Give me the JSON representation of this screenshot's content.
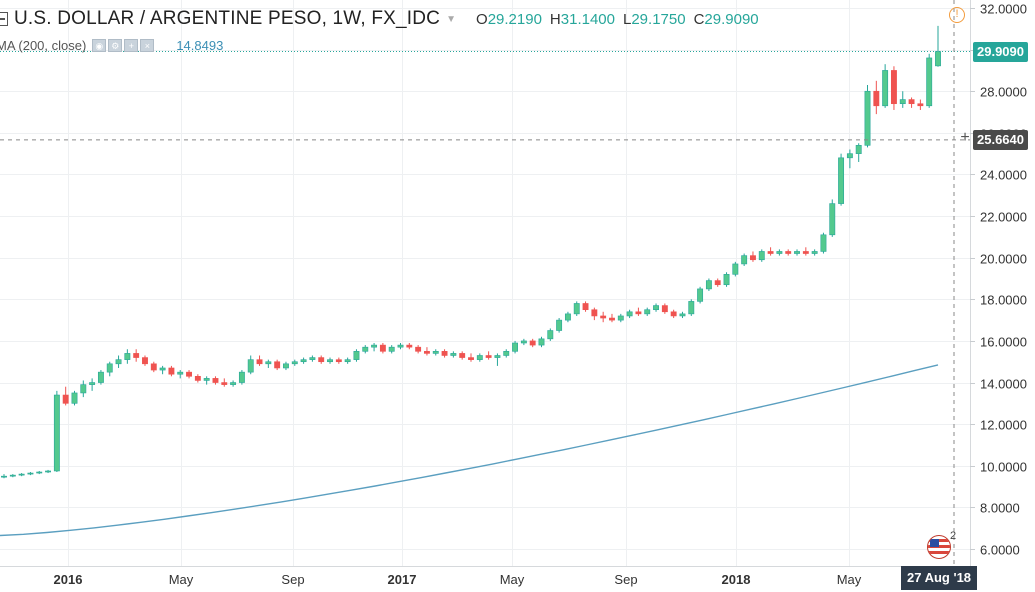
{
  "header": {
    "title": "U.S. DOLLAR / ARGENTINE PESO, 1W, FX_IDC",
    "ohlc": [
      {
        "label": "O",
        "value": "29.2190"
      },
      {
        "label": "H",
        "value": "31.1400"
      },
      {
        "label": "L",
        "value": "29.1750"
      },
      {
        "label": "C",
        "value": "29.9090"
      }
    ]
  },
  "study": {
    "name": "MA (200, close)",
    "value": "14.8493",
    "color": "#5b9fc0"
  },
  "price_labels": {
    "last": "29.9090",
    "crosshair": "25.6640",
    "last_color": "#26a69a",
    "crosshair_color": "#4a4a4a"
  },
  "date_label": "27 Aug '18",
  "flag_count": "2",
  "colors": {
    "up": "#26a69a",
    "up_fill": "#53c98e",
    "down": "#ef5350",
    "ma": "#5b9fc0",
    "grid": "#eef0f2",
    "axis_text": "#333333"
  },
  "chart_data": {
    "type": "candlestick",
    "y_ticks": [
      "32.0000",
      "30.0000",
      "28.0000",
      "26.0000",
      "24.0000",
      "22.0000",
      "20.0000",
      "18.0000",
      "16.0000",
      "14.0000",
      "12.0000",
      "10.0000",
      "8.0000",
      "6.0000"
    ],
    "x_ticks": [
      "2016",
      "May",
      "Sep",
      "2017",
      "May",
      "Sep",
      "2018",
      "May"
    ],
    "ylim": [
      5.0,
      32.5
    ],
    "last_price": 29.909,
    "crosshair_price": 25.664,
    "candles": [
      [
        9.5,
        9.6,
        9.4,
        9.5
      ],
      [
        9.5,
        9.6,
        9.45,
        9.55
      ],
      [
        9.55,
        9.65,
        9.5,
        9.6
      ],
      [
        9.6,
        9.7,
        9.55,
        9.65
      ],
      [
        9.65,
        9.75,
        9.6,
        9.7
      ],
      [
        9.7,
        9.8,
        9.65,
        9.75
      ],
      [
        9.75,
        13.6,
        9.7,
        13.4
      ],
      [
        13.4,
        13.8,
        12.9,
        13.0
      ],
      [
        13.0,
        13.6,
        12.9,
        13.5
      ],
      [
        13.5,
        14.1,
        13.3,
        13.9
      ],
      [
        13.9,
        14.2,
        13.6,
        14.0
      ],
      [
        14.0,
        14.6,
        13.9,
        14.5
      ],
      [
        14.5,
        15.0,
        14.3,
        14.9
      ],
      [
        14.9,
        15.3,
        14.7,
        15.1
      ],
      [
        15.1,
        15.6,
        14.9,
        15.4
      ],
      [
        15.4,
        15.6,
        15.0,
        15.2
      ],
      [
        15.2,
        15.3,
        14.8,
        14.9
      ],
      [
        14.9,
        15.0,
        14.5,
        14.6
      ],
      [
        14.6,
        14.8,
        14.4,
        14.7
      ],
      [
        14.7,
        14.8,
        14.3,
        14.4
      ],
      [
        14.4,
        14.6,
        14.2,
        14.5
      ],
      [
        14.5,
        14.6,
        14.2,
        14.3
      ],
      [
        14.3,
        14.4,
        14.0,
        14.1
      ],
      [
        14.1,
        14.3,
        13.9,
        14.2
      ],
      [
        14.2,
        14.3,
        13.9,
        14.0
      ],
      [
        14.0,
        14.2,
        13.8,
        13.9
      ],
      [
        13.9,
        14.1,
        13.8,
        14.0
      ],
      [
        14.0,
        14.6,
        13.9,
        14.5
      ],
      [
        14.5,
        15.3,
        14.4,
        15.1
      ],
      [
        15.1,
        15.3,
        14.8,
        14.9
      ],
      [
        14.9,
        15.1,
        14.7,
        15.0
      ],
      [
        15.0,
        15.1,
        14.6,
        14.7
      ],
      [
        14.7,
        15.0,
        14.6,
        14.9
      ],
      [
        14.9,
        15.1,
        14.8,
        15.0
      ],
      [
        15.0,
        15.2,
        14.9,
        15.1
      ],
      [
        15.1,
        15.3,
        15.0,
        15.2
      ],
      [
        15.2,
        15.3,
        14.9,
        15.0
      ],
      [
        15.0,
        15.2,
        14.9,
        15.1
      ],
      [
        15.1,
        15.2,
        14.9,
        15.0
      ],
      [
        15.0,
        15.2,
        14.9,
        15.1
      ],
      [
        15.1,
        15.6,
        15.0,
        15.5
      ],
      [
        15.5,
        15.8,
        15.4,
        15.7
      ],
      [
        15.7,
        15.9,
        15.5,
        15.8
      ],
      [
        15.8,
        15.9,
        15.4,
        15.5
      ],
      [
        15.5,
        15.8,
        15.4,
        15.7
      ],
      [
        15.7,
        15.9,
        15.6,
        15.8
      ],
      [
        15.8,
        15.9,
        15.6,
        15.7
      ],
      [
        15.7,
        15.8,
        15.4,
        15.5
      ],
      [
        15.5,
        15.7,
        15.3,
        15.4
      ],
      [
        15.4,
        15.6,
        15.3,
        15.5
      ],
      [
        15.5,
        15.6,
        15.2,
        15.3
      ],
      [
        15.3,
        15.5,
        15.2,
        15.4
      ],
      [
        15.4,
        15.5,
        15.1,
        15.2
      ],
      [
        15.2,
        15.4,
        15.0,
        15.1
      ],
      [
        15.1,
        15.4,
        15.0,
        15.3
      ],
      [
        15.3,
        15.5,
        15.1,
        15.2
      ],
      [
        15.2,
        15.4,
        14.8,
        15.3
      ],
      [
        15.3,
        15.6,
        15.2,
        15.5
      ],
      [
        15.5,
        16.0,
        15.4,
        15.9
      ],
      [
        15.9,
        16.1,
        15.8,
        16.0
      ],
      [
        16.0,
        16.1,
        15.7,
        15.8
      ],
      [
        15.8,
        16.2,
        15.7,
        16.1
      ],
      [
        16.1,
        16.6,
        16.0,
        16.5
      ],
      [
        16.5,
        17.1,
        16.4,
        17.0
      ],
      [
        17.0,
        17.4,
        16.9,
        17.3
      ],
      [
        17.3,
        17.9,
        17.2,
        17.8
      ],
      [
        17.8,
        17.9,
        17.4,
        17.5
      ],
      [
        17.5,
        17.6,
        17.0,
        17.2
      ],
      [
        17.2,
        17.4,
        16.9,
        17.1
      ],
      [
        17.1,
        17.3,
        16.9,
        17.0
      ],
      [
        17.0,
        17.3,
        16.9,
        17.2
      ],
      [
        17.2,
        17.5,
        17.1,
        17.4
      ],
      [
        17.4,
        17.6,
        17.2,
        17.3
      ],
      [
        17.3,
        17.6,
        17.2,
        17.5
      ],
      [
        17.5,
        17.8,
        17.4,
        17.7
      ],
      [
        17.7,
        17.8,
        17.3,
        17.4
      ],
      [
        17.4,
        17.5,
        17.1,
        17.2
      ],
      [
        17.2,
        17.4,
        17.1,
        17.3
      ],
      [
        17.3,
        18.0,
        17.2,
        17.9
      ],
      [
        17.9,
        18.6,
        17.8,
        18.5
      ],
      [
        18.5,
        19.0,
        18.4,
        18.9
      ],
      [
        18.9,
        19.0,
        18.6,
        18.7
      ],
      [
        18.7,
        19.3,
        18.6,
        19.2
      ],
      [
        19.2,
        19.8,
        19.1,
        19.7
      ],
      [
        19.7,
        20.2,
        19.6,
        20.1
      ],
      [
        20.1,
        20.3,
        19.8,
        19.9
      ],
      [
        19.9,
        20.4,
        19.8,
        20.3
      ],
      [
        20.3,
        20.5,
        20.1,
        20.2
      ],
      [
        20.2,
        20.4,
        20.1,
        20.3
      ],
      [
        20.3,
        20.4,
        20.1,
        20.2
      ],
      [
        20.2,
        20.4,
        20.1,
        20.3
      ],
      [
        20.3,
        20.5,
        20.1,
        20.2
      ],
      [
        20.2,
        20.4,
        20.1,
        20.3
      ],
      [
        20.3,
        21.2,
        20.2,
        21.1
      ],
      [
        21.1,
        22.8,
        21.0,
        22.6
      ],
      [
        22.6,
        25.0,
        22.5,
        24.8
      ],
      [
        24.8,
        25.2,
        24.3,
        25.0
      ],
      [
        25.0,
        25.5,
        24.6,
        25.4
      ],
      [
        25.4,
        28.3,
        25.3,
        28.0
      ],
      [
        28.0,
        28.5,
        26.9,
        27.3
      ],
      [
        27.3,
        29.3,
        27.2,
        29.0
      ],
      [
        29.0,
        29.2,
        27.1,
        27.4
      ],
      [
        27.4,
        28.0,
        27.2,
        27.6
      ],
      [
        27.6,
        27.7,
        27.2,
        27.4
      ],
      [
        27.4,
        27.6,
        27.1,
        27.3
      ],
      [
        27.3,
        29.8,
        27.2,
        29.6
      ],
      [
        29.219,
        31.14,
        29.175,
        29.909
      ]
    ],
    "ma_series": {
      "name": "MA (200, close)",
      "start": 6.65,
      "end": 14.85
    }
  }
}
